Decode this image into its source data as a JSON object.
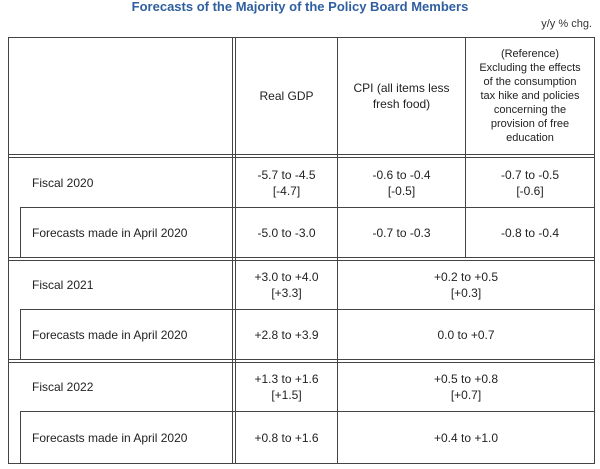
{
  "title": "Forecasts of the Majority of the Policy Board Members",
  "unit": "y/y % chg.",
  "headers": {
    "gdp": "Real GDP",
    "cpi_line1": "CPI (all items less",
    "cpi_line2": "fresh food)",
    "ref": [
      "(Reference)",
      "Excluding the effects",
      "of the consumption",
      "tax hike and policies",
      "concerning the",
      "provision of free",
      "education"
    ]
  },
  "rows": {
    "fy2020": {
      "label": "Fiscal 2020",
      "gdp_range": "-5.7 to -4.5",
      "gdp_median": "[-4.7]",
      "cpi_range": "-0.6 to -0.4",
      "cpi_median": "[-0.5]",
      "ref_range": "-0.7 to -0.5",
      "ref_median": "[-0.6]"
    },
    "fy2020_apr": {
      "label": "Forecasts made in April 2020",
      "gdp": "-5.0 to -3.0",
      "cpi": "-0.7 to -0.3",
      "ref": "-0.8 to -0.4"
    },
    "fy2021": {
      "label": "Fiscal 2021",
      "gdp_range": "+3.0 to +4.0",
      "gdp_median": "[+3.3]",
      "cpi_range": "+0.2 to +0.5",
      "cpi_median": "[+0.3]"
    },
    "fy2021_apr": {
      "label": "Forecasts made in April 2020",
      "gdp": "+2.8 to +3.9",
      "cpi": "0.0 to +0.7"
    },
    "fy2022": {
      "label": "Fiscal 2022",
      "gdp_range": "+1.3 to +1.6",
      "gdp_median": "[+1.5]",
      "cpi_range": "+0.5 to +0.8",
      "cpi_median": "[+0.7]"
    },
    "fy2022_apr": {
      "label": "Forecasts made in April 2020",
      "gdp": "+0.8 to +1.6",
      "cpi": "+0.4 to +1.0"
    }
  }
}
